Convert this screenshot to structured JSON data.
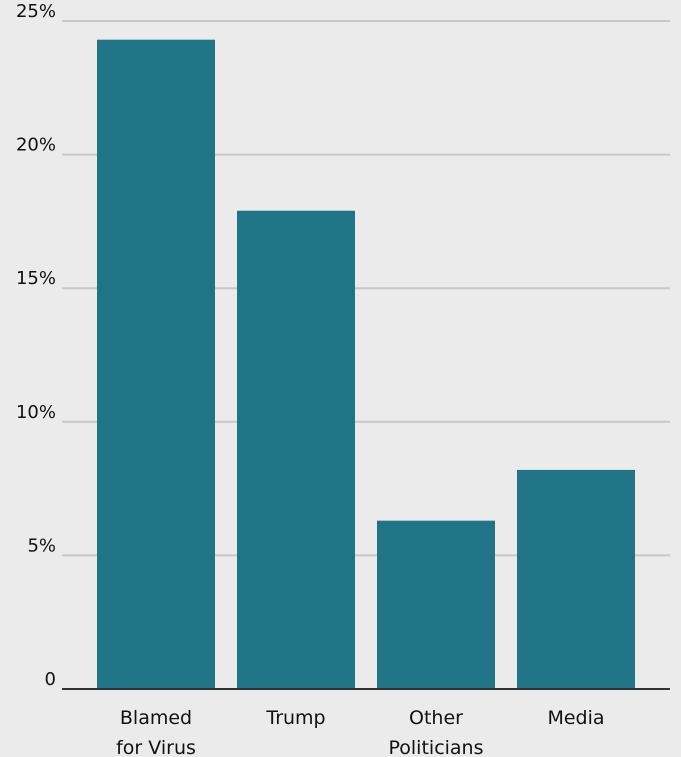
{
  "chart_data": {
    "type": "bar",
    "categories": [
      [
        "Blamed",
        "for Virus"
      ],
      [
        "Trump"
      ],
      [
        "Other",
        "Politicians"
      ],
      [
        "Media"
      ]
    ],
    "values": [
      24.3,
      17.9,
      6.3,
      8.2
    ],
    "y_ticks": [
      {
        "value": 0,
        "label": "0"
      },
      {
        "value": 5,
        "label": "5%"
      },
      {
        "value": 10,
        "label": "10%"
      },
      {
        "value": 15,
        "label": "15%"
      },
      {
        "value": 20,
        "label": "20%"
      },
      {
        "value": 25,
        "label": "25%"
      }
    ],
    "ylim": [
      0,
      25
    ],
    "grid": true,
    "title": "",
    "xlabel": "",
    "ylabel": "",
    "colors": {
      "bar": "#1f7585",
      "grid": "#c8c8c8",
      "axis": "#333333",
      "background": "#ebebeb"
    }
  }
}
